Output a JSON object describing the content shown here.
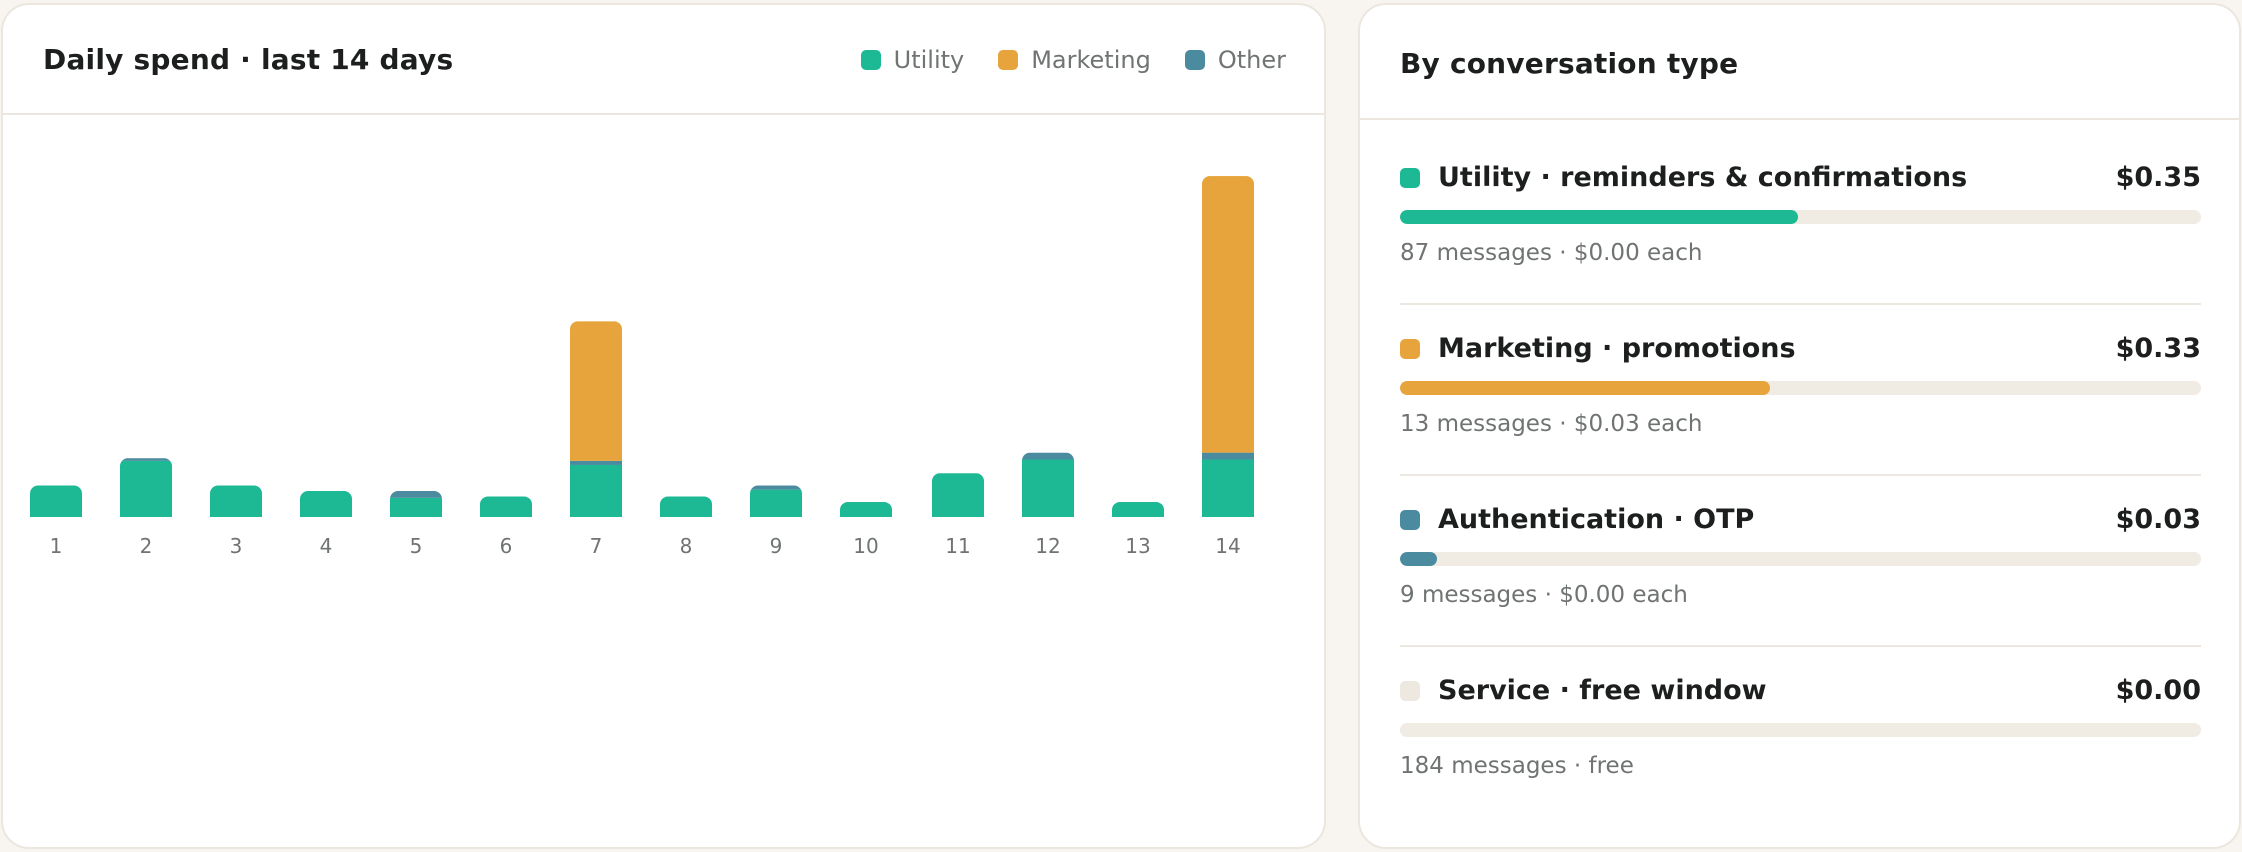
{
  "spend_card": {
    "title": "Daily spend · last 14 days",
    "legend": [
      {
        "label": "Utility",
        "color": "#1db894"
      },
      {
        "label": "Marketing",
        "color": "#e8a43c"
      },
      {
        "label": "Other",
        "color": "#4b8ba0"
      }
    ]
  },
  "chart_data": {
    "type": "bar",
    "stacked": true,
    "categories": [
      "1",
      "2",
      "3",
      "4",
      "5",
      "6",
      "7",
      "8",
      "9",
      "10",
      "11",
      "12",
      "13",
      "14"
    ],
    "series": [
      {
        "name": "Utility",
        "color": "#1db894",
        "values": [
          0.0115,
          0.0205,
          0.0115,
          0.0095,
          0.007,
          0.0075,
          0.019,
          0.0075,
          0.01,
          0.0055,
          0.016,
          0.021,
          0.0055,
          0.021
        ]
      },
      {
        "name": "Marketing",
        "color": "#e8a43c",
        "values": [
          0,
          0,
          0,
          0,
          0,
          0,
          0.051,
          0,
          0,
          0,
          0,
          0,
          0,
          0.101
        ]
      },
      {
        "name": "Other",
        "color": "#4b8ba0",
        "values": [
          0,
          0.001,
          0,
          0,
          0.0025,
          0,
          0.0015,
          0,
          0.0015,
          0,
          0,
          0.0025,
          0,
          0.0025
        ]
      }
    ],
    "ylim": [
      0,
      0.13
    ],
    "grid": false,
    "legend_position": "top-right"
  },
  "type_card": {
    "title": "By conversation type",
    "rows": [
      {
        "name": "Utility · reminders & confirmations",
        "amount": "$0.35",
        "detail": "87 messages · $0.00 each",
        "share": 0.497,
        "color": "#1db894"
      },
      {
        "name": "Marketing · promotions",
        "amount": "$0.33",
        "detail": "13 messages · $0.03 each",
        "share": 0.462,
        "color": "#e8a43c"
      },
      {
        "name": "Authentication · OTP",
        "amount": "$0.03",
        "detail": "9 messages · $0.00 each",
        "share": 0.046,
        "color": "#4b8ba0"
      },
      {
        "name": "Service · free window",
        "amount": "$0.00",
        "detail": "184 messages · free",
        "share": 0,
        "color": "#ede8e0"
      }
    ]
  }
}
